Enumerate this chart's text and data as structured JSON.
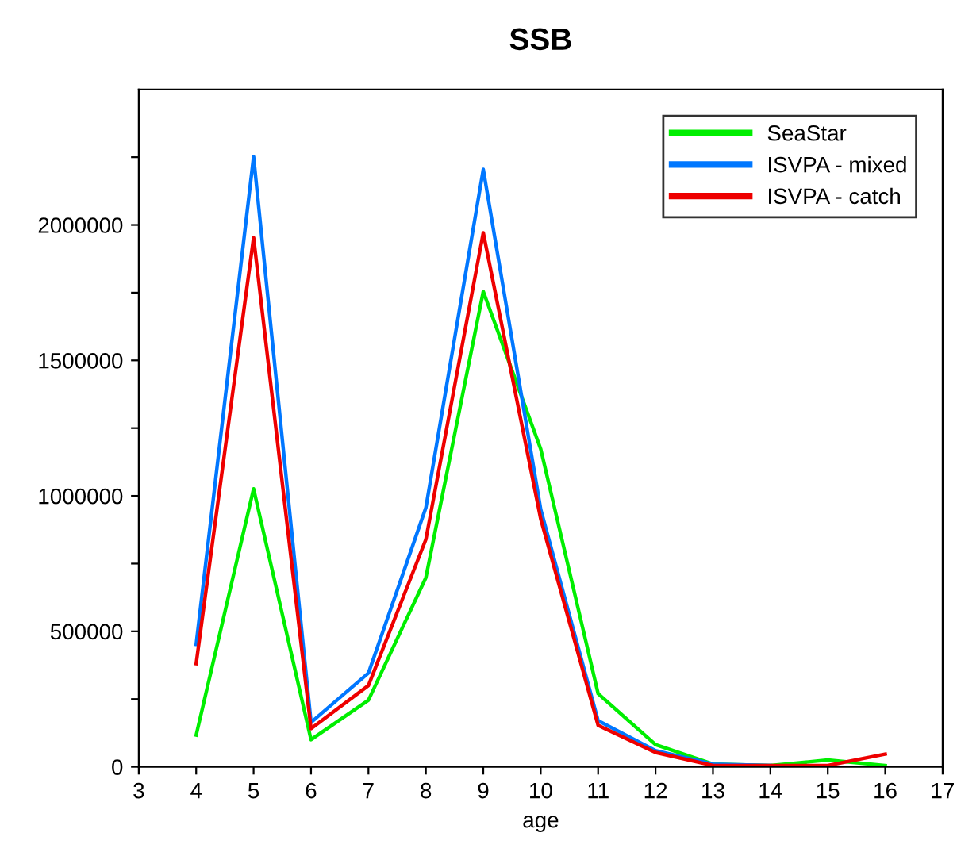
{
  "chart_data": {
    "type": "line",
    "title": "SSB",
    "xlabel": "age",
    "x": [
      4,
      5,
      6,
      7,
      8,
      9,
      10,
      11,
      12,
      13,
      14,
      15,
      16
    ],
    "series": [
      {
        "name": "SeaStar",
        "color": "#00ee00",
        "values": [
          117000,
          1026000,
          100000,
          246000,
          698000,
          1754000,
          1173000,
          270000,
          82000,
          10000,
          5000,
          25000,
          5000
        ]
      },
      {
        "name": "ISVPA - mixed",
        "color": "#0077ff",
        "values": [
          452000,
          2252000,
          164000,
          346000,
          956000,
          2205000,
          950000,
          170000,
          60000,
          10000,
          5000,
          null,
          null
        ]
      },
      {
        "name": "ISVPA - catch",
        "color": "#ee0000",
        "values": [
          381000,
          1953000,
          141000,
          300000,
          839000,
          1971000,
          915000,
          153000,
          53000,
          5000,
          5000,
          5000,
          47000
        ]
      }
    ],
    "xlim": [
      3,
      17
    ],
    "xticks": [
      3,
      4,
      5,
      6,
      7,
      8,
      9,
      10,
      11,
      12,
      13,
      14,
      15,
      16,
      17
    ],
    "ylim": [
      0,
      2500000
    ],
    "yticks": [
      0,
      {
        "value": 250000,
        "label": null
      },
      500000,
      {
        "value": 750000,
        "label": null
      },
      1000000,
      {
        "value": 1250000,
        "label": null
      },
      1500000,
      {
        "value": 1750000,
        "label": null
      },
      2000000,
      {
        "value": 2250000,
        "label": null
      }
    ],
    "grid": false,
    "legend": "top right",
    "marker": "none",
    "line_style": "solid"
  }
}
